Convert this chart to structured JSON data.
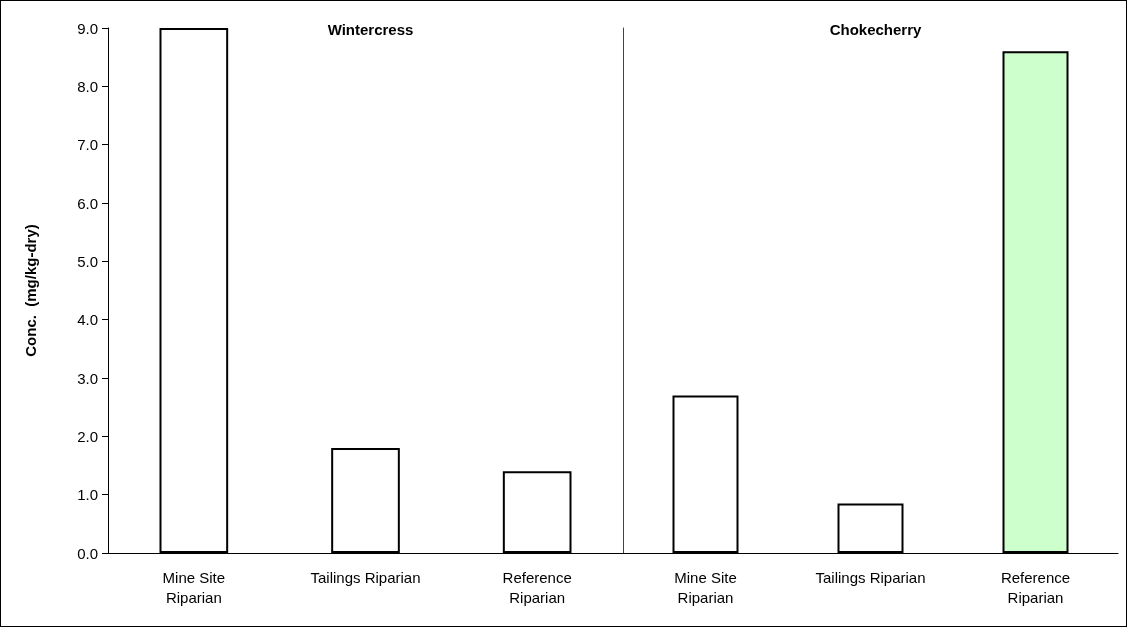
{
  "chart_data": [
    {
      "type": "bar",
      "title": "Wintercress",
      "ylabel": "Conc.  (mg/kg-dry)",
      "categories": [
        "Mine Site\nRiparian",
        "Tailings Riparian",
        "Reference\nRiparian"
      ],
      "values": [
        9.0,
        1.8,
        1.4
      ],
      "colors": [
        "#ffffff",
        "#ffffff",
        "#ffffff"
      ],
      "ylim": [
        0,
        9
      ],
      "yticks": [
        {
          "value": 0,
          "label": "0.0"
        },
        {
          "value": 1,
          "label": "1.0"
        },
        {
          "value": 2,
          "label": "2.0"
        },
        {
          "value": 3,
          "label": "3.0"
        },
        {
          "value": 4,
          "label": "4.0"
        },
        {
          "value": 5,
          "label": "5.0"
        },
        {
          "value": 6,
          "label": "6.0"
        },
        {
          "value": 7,
          "label": "7.0"
        },
        {
          "value": 8,
          "label": "8.0"
        },
        {
          "value": 9,
          "label": "9.0"
        }
      ],
      "grid": false
    },
    {
      "type": "bar",
      "title": "Chokecherry",
      "categories": [
        "Mine Site\nRiparian",
        "Tailings Riparian",
        "Reference\nRiparian"
      ],
      "values": [
        2.7,
        0.85,
        8.6
      ],
      "colors": [
        "#ffffff",
        "#ffffff",
        "#ccffcc"
      ],
      "ylim": [
        0,
        9
      ],
      "tick_labels": "x",
      "grid": false
    }
  ]
}
